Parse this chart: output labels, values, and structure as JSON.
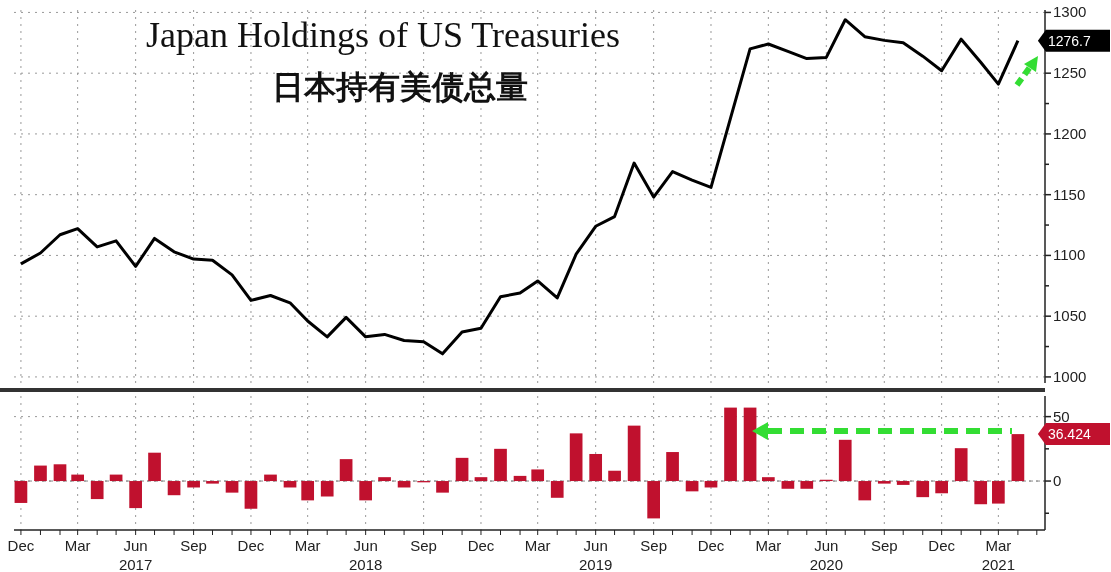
{
  "chart_data": [
    {
      "type": "line",
      "title": "Japan Holdings of US Treasuries",
      "subtitle": "日本持有美债总量",
      "x": [
        "2016-12",
        "2017-01",
        "2017-02",
        "2017-03",
        "2017-04",
        "2017-05",
        "2017-06",
        "2017-07",
        "2017-08",
        "2017-09",
        "2017-10",
        "2017-11",
        "2017-12",
        "2018-01",
        "2018-02",
        "2018-03",
        "2018-04",
        "2018-05",
        "2018-06",
        "2018-07",
        "2018-08",
        "2018-09",
        "2018-10",
        "2018-11",
        "2018-12",
        "2019-01",
        "2019-02",
        "2019-03",
        "2019-04",
        "2019-05",
        "2019-06",
        "2019-07",
        "2019-08",
        "2019-09",
        "2019-10",
        "2019-11",
        "2019-12",
        "2020-01",
        "2020-02",
        "2020-03",
        "2020-04",
        "2020-05",
        "2020-06",
        "2020-07",
        "2020-08",
        "2020-09",
        "2020-10",
        "2020-11",
        "2020-12",
        "2021-01",
        "2021-02",
        "2021-03",
        "2021-04"
      ],
      "series": [
        {
          "color": "#000000",
          "values": [
            1093,
            1102,
            1117,
            1122,
            1107,
            1112,
            1091,
            1114,
            1103,
            1097,
            1096,
            1084,
            1063,
            1067,
            1061,
            1046,
            1033,
            1049,
            1033,
            1035,
            1030,
            1029,
            1019,
            1037,
            1040,
            1066,
            1069,
            1079,
            1065,
            1101,
            1124,
            1132,
            1176,
            1148,
            1169,
            1162,
            1156,
            1213,
            1270,
            1274,
            1268,
            1262,
            1263,
            1294,
            1280,
            1277,
            1275,
            1264,
            1252,
            1278,
            1259,
            1241,
            1276.7
          ]
        }
      ],
      "xlim": [
        "2016-11-20",
        "2021-05-14"
      ],
      "xticks": [
        {
          "value": "2016-12",
          "label": null
        },
        {
          "value": "2017-03",
          "label": null
        },
        {
          "value": "2017-06",
          "label": null
        },
        {
          "value": "2017-09",
          "label": null
        },
        {
          "value": "2017-12",
          "label": null
        },
        {
          "value": "2018-03",
          "label": null
        },
        {
          "value": "2018-06",
          "label": null
        },
        {
          "value": "2018-09",
          "label": null
        },
        {
          "value": "2018-12",
          "label": null
        },
        {
          "value": "2019-03",
          "label": null
        },
        {
          "value": "2019-06",
          "label": null
        },
        {
          "value": "2019-09",
          "label": null
        },
        {
          "value": "2019-12",
          "label": null
        },
        {
          "value": "2020-03",
          "label": null
        },
        {
          "value": "2020-06",
          "label": null
        },
        {
          "value": "2020-09",
          "label": null
        },
        {
          "value": "2020-12",
          "label": null
        },
        {
          "value": "2021-03",
          "label": null
        }
      ],
      "ylim": [
        995,
        1302
      ],
      "yticks": [
        1000,
        {
          "value": 1025,
          "label": null
        },
        1050,
        {
          "value": 1075,
          "label": null
        },
        1100,
        {
          "value": 1125,
          "label": null
        },
        1150,
        {
          "value": 1175,
          "label": null
        },
        1200,
        {
          "value": 1225,
          "label": null
        },
        1250,
        {
          "value": 1275,
          "label": null
        },
        1300
      ],
      "grid": true,
      "tick_labels": "y",
      "annotations": [
        {
          "text": "1276.7",
          "x": "2021-04",
          "y": 1276.7
        }
      ]
    },
    {
      "type": "bar",
      "x": [
        "2016-12",
        "2017-01",
        "2017-02",
        "2017-03",
        "2017-04",
        "2017-05",
        "2017-06",
        "2017-07",
        "2017-08",
        "2017-09",
        "2017-10",
        "2017-11",
        "2017-12",
        "2018-01",
        "2018-02",
        "2018-03",
        "2018-04",
        "2018-05",
        "2018-06",
        "2018-07",
        "2018-08",
        "2018-09",
        "2018-10",
        "2018-11",
        "2018-12",
        "2019-01",
        "2019-02",
        "2019-03",
        "2019-04",
        "2019-05",
        "2019-06",
        "2019-07",
        "2019-08",
        "2019-09",
        "2019-10",
        "2019-11",
        "2019-12",
        "2020-01",
        "2020-02",
        "2020-03",
        "2020-04",
        "2020-05",
        "2020-06",
        "2020-07",
        "2020-08",
        "2020-09",
        "2020-10",
        "2020-11",
        "2020-12",
        "2021-01",
        "2021-02",
        "2021-03",
        "2021-04"
      ],
      "series": [
        {
          "color": "#c0112e",
          "values": [
            -17,
            12,
            13,
            5,
            -14,
            5,
            -21,
            22,
            -11,
            -5,
            -2,
            -9,
            -21.5,
            5,
            -5,
            -15,
            -12,
            17,
            -15,
            3,
            -5,
            -1,
            -9,
            18,
            3,
            25,
            4,
            9,
            -13,
            37,
            21,
            8,
            43,
            -29,
            22.5,
            -8,
            -5,
            57,
            57,
            3,
            -6,
            -6,
            1,
            32,
            -15,
            -2,
            -3,
            -12.5,
            -9.5,
            25.5,
            -18,
            -17.5,
            36.424
          ]
        }
      ],
      "xlim": [
        "2016-11-20",
        "2021-05-14"
      ],
      "xticks": [
        {
          "value": "2016-12",
          "label": "Dec"
        },
        {
          "value": "2017-03",
          "label": "Mar"
        },
        {
          "value": "2017-06",
          "label": "Jun\n2017"
        },
        {
          "value": "2017-09",
          "label": "Sep"
        },
        {
          "value": "2017-12",
          "label": "Dec"
        },
        {
          "value": "2018-03",
          "label": "Mar"
        },
        {
          "value": "2018-06",
          "label": "Jun\n2018"
        },
        {
          "value": "2018-09",
          "label": "Sep"
        },
        {
          "value": "2018-12",
          "label": "Dec"
        },
        {
          "value": "2019-03",
          "label": "Mar"
        },
        {
          "value": "2019-06",
          "label": "Jun\n2019"
        },
        {
          "value": "2019-09",
          "label": "Sep"
        },
        {
          "value": "2019-12",
          "label": "Dec"
        },
        {
          "value": "2020-03",
          "label": "Mar"
        },
        {
          "value": "2020-06",
          "label": "Jun\n2020"
        },
        {
          "value": "2020-09",
          "label": "Sep"
        },
        {
          "value": "2020-12",
          "label": "Dec"
        },
        {
          "value": "2021-03",
          "label": "Mar\n2021"
        }
      ],
      "ylim": [
        -38,
        66
      ],
      "yticks": [
        {
          "value": -25,
          "label": null
        },
        0,
        {
          "value": 25,
          "label": null
        },
        50
      ],
      "grid": true,
      "ref_lines": [
        {
          "axis": "y",
          "value": 0,
          "color": "#888888",
          "line_style": "dashed"
        }
      ],
      "annotations": [
        {
          "text": "36.424",
          "x": "2021-04",
          "y": 36.424
        }
      ]
    }
  ]
}
